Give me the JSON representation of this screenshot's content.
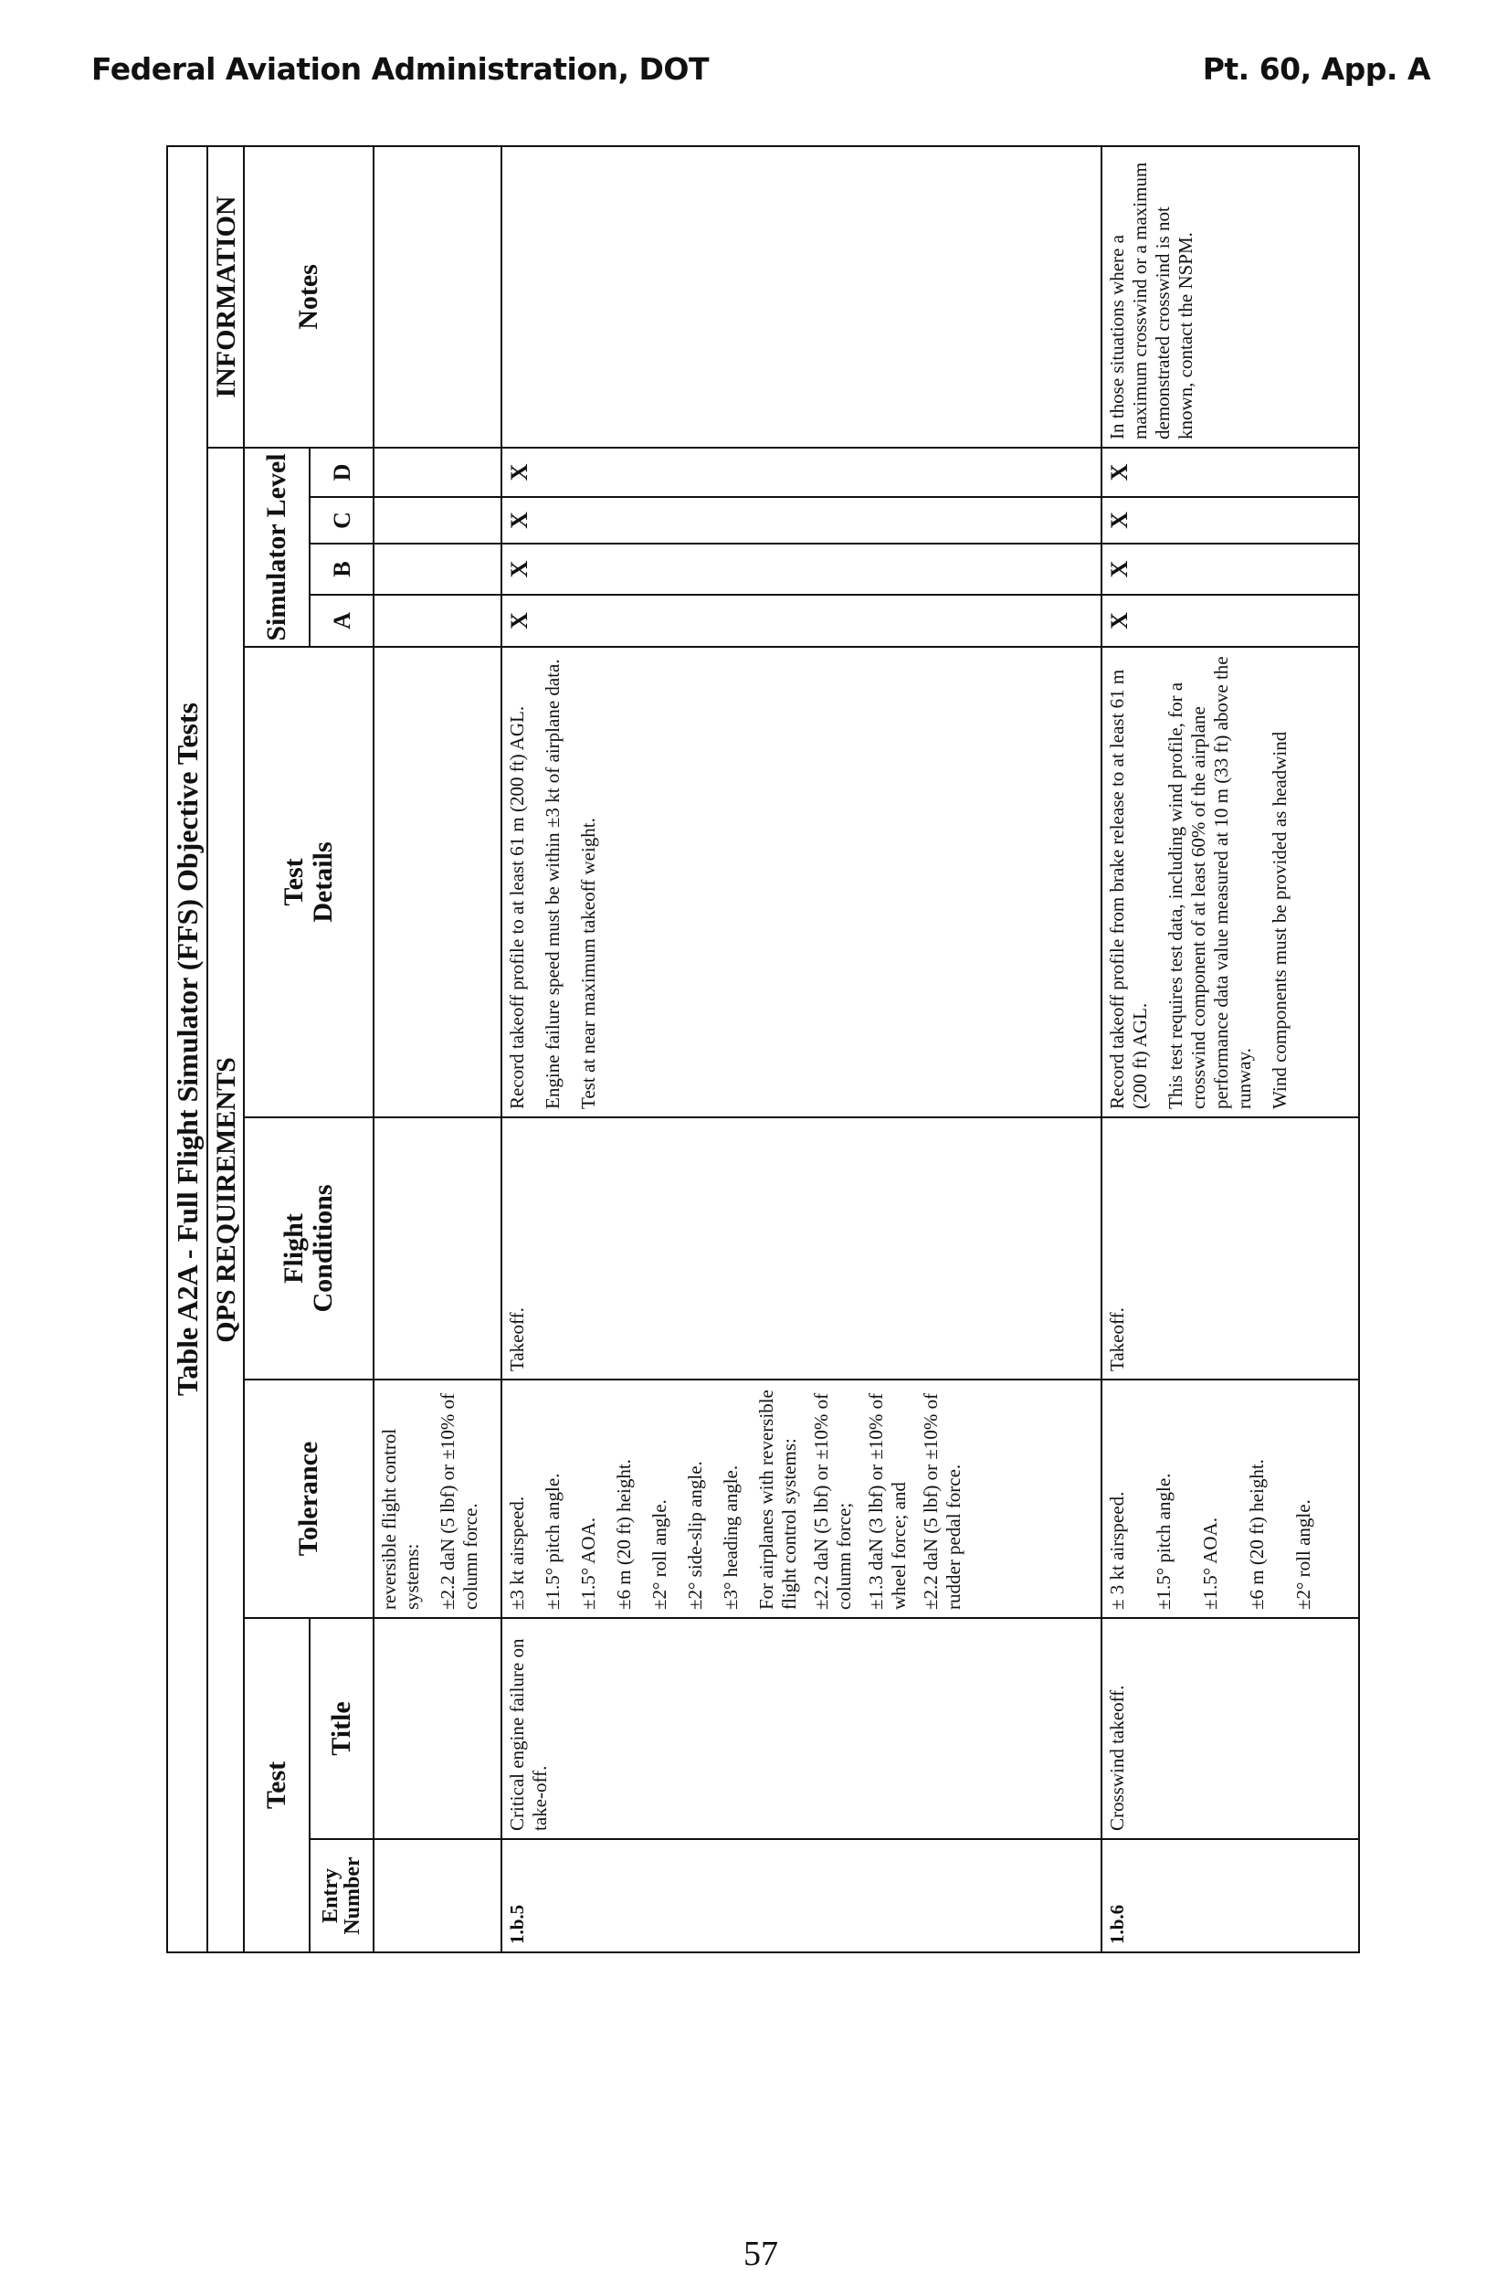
{
  "running_head": {
    "left": "Federal Aviation Administration, DOT",
    "right": "Pt. 60, App. A"
  },
  "page_number": "57",
  "table": {
    "title": "Table A2A - Full Flight Simulator (FFS) Objective Tests",
    "section_qps": "QPS REQUIREMENTS",
    "section_info": "INFORMATION",
    "headers": {
      "test": "Test",
      "entry_number": "Entry Number",
      "title": "Title",
      "tolerance": "Tolerance",
      "flight_conditions": "Flight Conditions",
      "test_details": "Test Details",
      "simulator_level": "Simulator Level",
      "levels": [
        "A",
        "B",
        "C",
        "D"
      ],
      "notes": "Notes"
    },
    "rows": [
      {
        "entry": "",
        "title": "",
        "tolerance": [
          "reversible flight control systems:",
          "±2.2 daN (5 lbf) or ±10% of column force."
        ],
        "flight_conditions": "",
        "test_details": [],
        "levels": [
          "",
          "",
          "",
          ""
        ],
        "notes": ""
      },
      {
        "entry": "1.b.5",
        "title": "Critical engine failure on take-off.",
        "tolerance": [
          "±3 kt airspeed.",
          "±1.5° pitch angle.",
          "±1.5° AOA.",
          "±6 m (20 ft) height.",
          "±2° roll angle.",
          "±2° side-slip angle.",
          "±3° heading angle.",
          "For airplanes with reversible flight control systems:",
          "±2.2 daN (5 lbf) or ±10% of column force;",
          "±1.3 daN (3 lbf) or ±10% of wheel force; and",
          "±2.2 daN (5 lbf) or ±10% of rudder pedal force."
        ],
        "flight_conditions": "Takeoff.",
        "test_details": [
          "Record takeoff profile to at least 61 m (200 ft) AGL.",
          "Engine failure speed must be within ±3 kt of airplane data.",
          "Test at near maximum takeoff weight."
        ],
        "levels": [
          "X",
          "X",
          "X",
          "X"
        ],
        "notes": ""
      },
      {
        "entry": "1.b.6",
        "title": "Crosswind takeoff.",
        "tolerance": [
          "± 3 kt airspeed.",
          "±1.5° pitch angle.",
          "±1.5° AOA.",
          "±6 m (20 ft) height.",
          "±2° roll angle."
        ],
        "flight_conditions": "Takeoff.",
        "test_details": [
          "Record takeoff profile from brake release to at least 61 m (200 ft) AGL.",
          "This test requires test data, including wind profile, for a crosswind component of at least 60% of the airplane performance data value measured at 10 m (33 ft) above the runway.",
          "Wind components must be provided as headwind"
        ],
        "levels": [
          "X",
          "X",
          "X",
          "X"
        ],
        "notes": "In those situations where a maximum crosswind or a maximum demonstrated crosswind is not known, contact the NSPM."
      }
    ]
  }
}
